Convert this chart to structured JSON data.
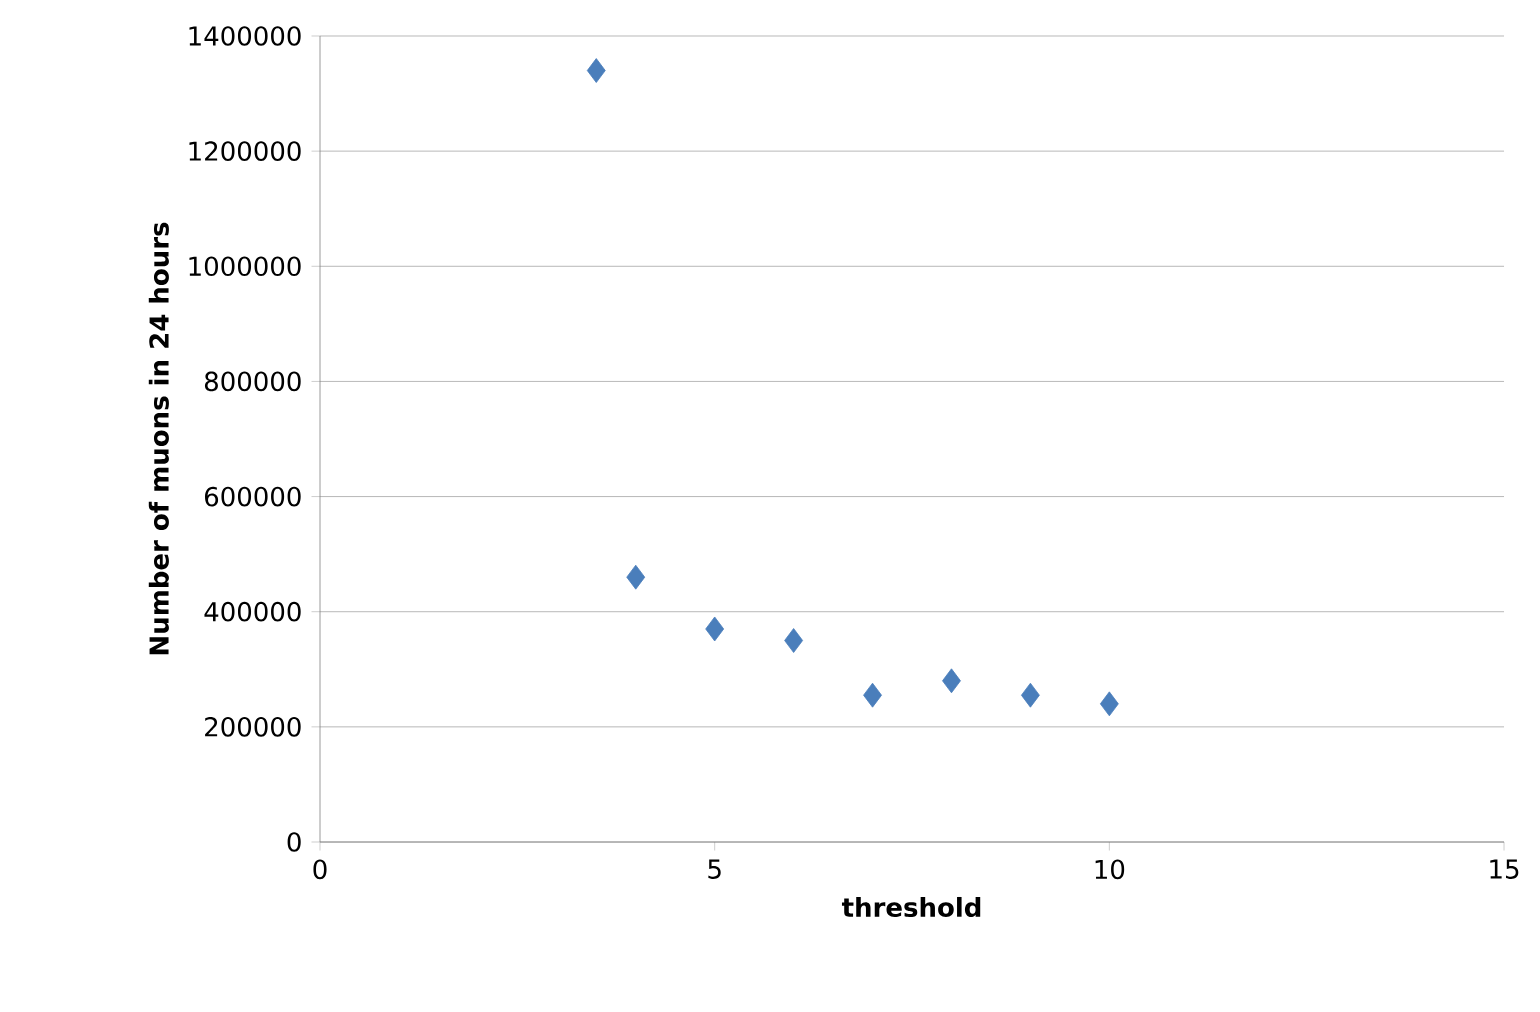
{
  "chart_data": {
    "type": "scatter",
    "xlabel": "threshold",
    "ylabel": "Number of muons in 24 hours",
    "x": [
      3.5,
      4,
      5,
      6,
      7,
      8,
      9,
      10
    ],
    "values": [
      1340000,
      460000,
      370000,
      350000,
      255000,
      280000,
      255000,
      240000
    ],
    "color": "#4a7ebb",
    "marker": "diamond",
    "grid": "y",
    "xlim": [
      0,
      15
    ],
    "xticks": [
      0,
      5,
      10,
      15
    ],
    "ylim": [
      0,
      1400000
    ],
    "yticks": [
      0,
      200000,
      400000,
      600000,
      800000,
      1000000,
      1200000,
      1400000
    ]
  }
}
